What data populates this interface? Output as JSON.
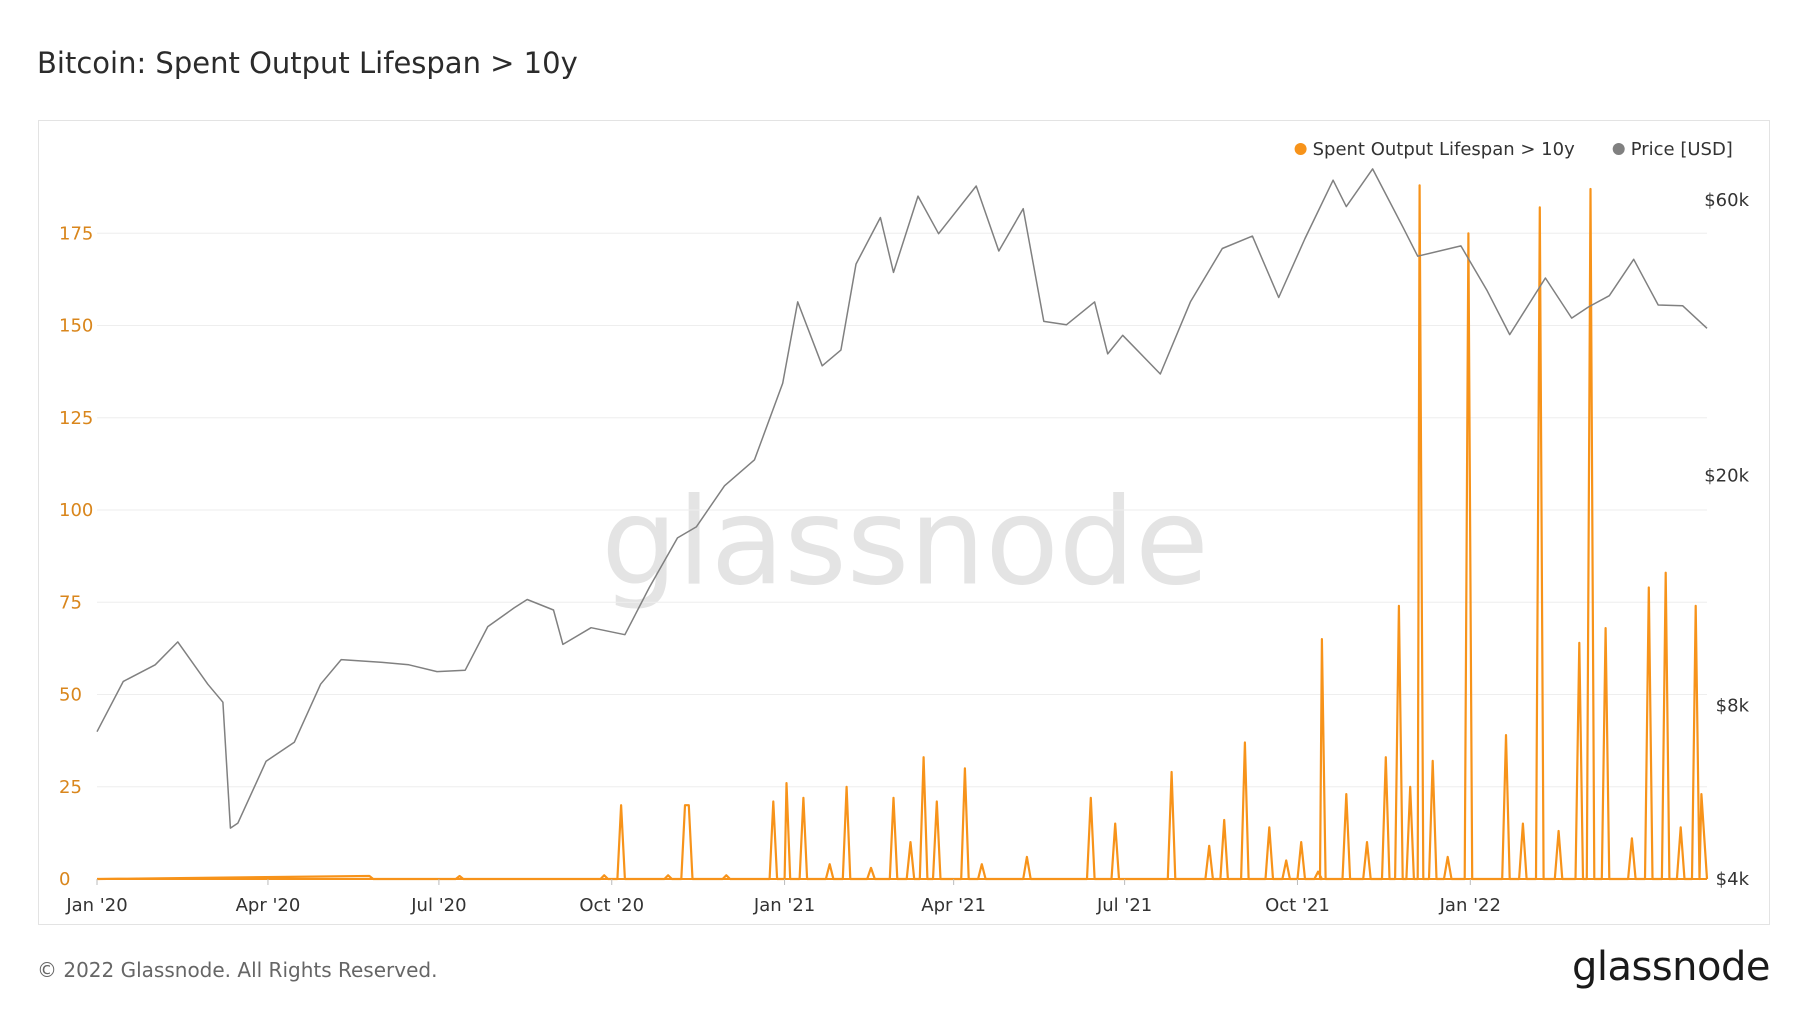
{
  "title": "Bitcoin: Spent Output Lifespan > 10y",
  "footer": {
    "copyright": "© 2022 Glassnode. All Rights Reserved.",
    "logo": "glassnode"
  },
  "watermark": "glassnode",
  "colors": {
    "spent": "#f7931a",
    "price": "#808080",
    "grid": "#eeeeee",
    "left_axis": "#d9861c"
  },
  "chart_data": {
    "type": "line",
    "title": "Bitcoin: Spent Output Lifespan > 10y",
    "xlabel": "",
    "ylabel": "",
    "x_range": [
      "2020-01-01",
      "2022-05-07"
    ],
    "x_ticks": [
      {
        "date": "2020-01-01",
        "label": "Jan '20"
      },
      {
        "date": "2020-04-01",
        "label": "Apr '20"
      },
      {
        "date": "2020-07-01",
        "label": "Jul '20"
      },
      {
        "date": "2020-10-01",
        "label": "Oct '20"
      },
      {
        "date": "2021-01-01",
        "label": "Jan '21"
      },
      {
        "date": "2021-04-01",
        "label": "Apr '21"
      },
      {
        "date": "2021-07-01",
        "label": "Jul '21"
      },
      {
        "date": "2021-10-01",
        "label": "Oct '21"
      },
      {
        "date": "2022-01-01",
        "label": "Jan '22"
      }
    ],
    "y_left": {
      "min": 0,
      "max": 200,
      "ticks": [
        0,
        25,
        50,
        75,
        100,
        125,
        150,
        175
      ],
      "labels": [
        "0",
        "25",
        "50",
        "75",
        "100",
        "125",
        "150",
        "175"
      ]
    },
    "y_right": {
      "scale": "log",
      "min": 4000,
      "max": 76000,
      "ticks": [
        4000,
        8000,
        20000,
        60000
      ],
      "labels": [
        "$4k",
        "$8k",
        "$20k",
        "$60k"
      ]
    },
    "legend_position": "top-right",
    "grid": true,
    "series": [
      {
        "name": "Spent Output Lifespan > 10y",
        "axis": "left",
        "style": "line",
        "points": [
          [
            "2020-01-01",
            0
          ],
          [
            "2020-05-25",
            0.8
          ],
          [
            "2020-05-27",
            0
          ],
          [
            "2020-07-10",
            0
          ],
          [
            "2020-07-12",
            0.8
          ],
          [
            "2020-07-14",
            0
          ],
          [
            "2020-09-25",
            0
          ],
          [
            "2020-09-27",
            1
          ],
          [
            "2020-09-29",
            0
          ],
          [
            "2020-10-04",
            0
          ],
          [
            "2020-10-06",
            20
          ],
          [
            "2020-10-08",
            0
          ],
          [
            "2020-10-29",
            0
          ],
          [
            "2020-10-31",
            1
          ],
          [
            "2020-11-02",
            0
          ],
          [
            "2020-11-07",
            0
          ],
          [
            "2020-11-09",
            20
          ],
          [
            "2020-11-11",
            20
          ],
          [
            "2020-11-13",
            0
          ],
          [
            "2020-11-29",
            0
          ],
          [
            "2020-12-01",
            1
          ],
          [
            "2020-12-03",
            0
          ],
          [
            "2020-12-24",
            0
          ],
          [
            "2020-12-26",
            21
          ],
          [
            "2020-12-28",
            0
          ],
          [
            "2021-01-01",
            0
          ],
          [
            "2021-01-02",
            26
          ],
          [
            "2021-01-04",
            0
          ],
          [
            "2021-01-09",
            0
          ],
          [
            "2021-01-11",
            22
          ],
          [
            "2021-01-13",
            0
          ],
          [
            "2021-01-23",
            0
          ],
          [
            "2021-01-25",
            4
          ],
          [
            "2021-01-27",
            0
          ],
          [
            "2021-02-01",
            0
          ],
          [
            "2021-02-03",
            25
          ],
          [
            "2021-02-05",
            0
          ],
          [
            "2021-02-14",
            0
          ],
          [
            "2021-02-16",
            3
          ],
          [
            "2021-02-18",
            0
          ],
          [
            "2021-02-26",
            0
          ],
          [
            "2021-02-28",
            22
          ],
          [
            "2021-03-02",
            0
          ],
          [
            "2021-03-07",
            0
          ],
          [
            "2021-03-09",
            10
          ],
          [
            "2021-03-11",
            0
          ],
          [
            "2021-03-14",
            0
          ],
          [
            "2021-03-16",
            33
          ],
          [
            "2021-03-18",
            0
          ],
          [
            "2021-03-21",
            0
          ],
          [
            "2021-03-23",
            21
          ],
          [
            "2021-03-25",
            0
          ],
          [
            "2021-04-05",
            0
          ],
          [
            "2021-04-07",
            30
          ],
          [
            "2021-04-09",
            0
          ],
          [
            "2021-04-14",
            0
          ],
          [
            "2021-04-16",
            4
          ],
          [
            "2021-04-18",
            0
          ],
          [
            "2021-05-08",
            0
          ],
          [
            "2021-05-10",
            6
          ],
          [
            "2021-05-12",
            0
          ],
          [
            "2021-06-11",
            0
          ],
          [
            "2021-06-13",
            22
          ],
          [
            "2021-06-15",
            0
          ],
          [
            "2021-06-24",
            0
          ],
          [
            "2021-06-26",
            15
          ],
          [
            "2021-06-28",
            0
          ],
          [
            "2021-07-24",
            0
          ],
          [
            "2021-07-26",
            29
          ],
          [
            "2021-07-28",
            0
          ],
          [
            "2021-08-13",
            0
          ],
          [
            "2021-08-15",
            9
          ],
          [
            "2021-08-17",
            0
          ],
          [
            "2021-08-21",
            0
          ],
          [
            "2021-08-23",
            16
          ],
          [
            "2021-08-25",
            0
          ],
          [
            "2021-09-01",
            0
          ],
          [
            "2021-09-03",
            37
          ],
          [
            "2021-09-05",
            0
          ],
          [
            "2021-09-14",
            0
          ],
          [
            "2021-09-16",
            14
          ],
          [
            "2021-09-18",
            0
          ],
          [
            "2021-09-23",
            0
          ],
          [
            "2021-09-25",
            5
          ],
          [
            "2021-09-27",
            0
          ],
          [
            "2021-10-01",
            0
          ],
          [
            "2021-10-03",
            10
          ],
          [
            "2021-10-05",
            0
          ],
          [
            "2021-10-10",
            0
          ],
          [
            "2021-10-12",
            2
          ],
          [
            "2021-10-14",
            0
          ],
          [
            "2021-10-13",
            0
          ],
          [
            "2021-10-14",
            65
          ],
          [
            "2021-10-16",
            0
          ],
          [
            "2021-10-25",
            0
          ],
          [
            "2021-10-27",
            23
          ],
          [
            "2021-10-29",
            0
          ],
          [
            "2021-11-05",
            0
          ],
          [
            "2021-11-07",
            10
          ],
          [
            "2021-11-09",
            0
          ],
          [
            "2021-11-15",
            0
          ],
          [
            "2021-11-17",
            33
          ],
          [
            "2021-11-19",
            0
          ],
          [
            "2021-11-22",
            0
          ],
          [
            "2021-11-24",
            74
          ],
          [
            "2021-11-26",
            0
          ],
          [
            "2021-11-28",
            0
          ],
          [
            "2021-11-30",
            25
          ],
          [
            "2021-12-02",
            0
          ],
          [
            "2021-12-04",
            0
          ],
          [
            "2021-12-05",
            188
          ],
          [
            "2021-12-07",
            0
          ],
          [
            "2021-12-10",
            0
          ],
          [
            "2021-12-12",
            32
          ],
          [
            "2021-12-14",
            0
          ],
          [
            "2021-12-18",
            0
          ],
          [
            "2021-12-20",
            6
          ],
          [
            "2021-12-22",
            0
          ],
          [
            "2021-12-29",
            0
          ],
          [
            "2021-12-31",
            175
          ],
          [
            "2022-01-02",
            0
          ],
          [
            "2022-01-18",
            0
          ],
          [
            "2022-01-20",
            39
          ],
          [
            "2022-01-22",
            0
          ],
          [
            "2022-01-27",
            0
          ],
          [
            "2022-01-29",
            15
          ],
          [
            "2022-01-31",
            0
          ],
          [
            "2022-02-05",
            0
          ],
          [
            "2022-02-07",
            182
          ],
          [
            "2022-02-09",
            0
          ],
          [
            "2022-02-15",
            0
          ],
          [
            "2022-02-17",
            13
          ],
          [
            "2022-02-19",
            0
          ],
          [
            "2022-02-26",
            0
          ],
          [
            "2022-02-28",
            64
          ],
          [
            "2022-03-02",
            0
          ],
          [
            "2022-03-04",
            0
          ],
          [
            "2022-03-06",
            187
          ],
          [
            "2022-03-08",
            0
          ],
          [
            "2022-03-12",
            0
          ],
          [
            "2022-03-14",
            68
          ],
          [
            "2022-03-16",
            0
          ],
          [
            "2022-03-26",
            0
          ],
          [
            "2022-03-28",
            11
          ],
          [
            "2022-03-30",
            0
          ],
          [
            "2022-04-04",
            0
          ],
          [
            "2022-04-06",
            79
          ],
          [
            "2022-04-08",
            0
          ],
          [
            "2022-04-13",
            0
          ],
          [
            "2022-04-15",
            83
          ],
          [
            "2022-04-17",
            0
          ],
          [
            "2022-04-21",
            0
          ],
          [
            "2022-04-23",
            14
          ],
          [
            "2022-04-25",
            0
          ],
          [
            "2022-04-29",
            0
          ],
          [
            "2022-05-01",
            74
          ],
          [
            "2022-05-03",
            0
          ],
          [
            "2022-05-04",
            23
          ],
          [
            "2022-05-07",
            0
          ]
        ]
      },
      {
        "name": "Price [USD]",
        "axis": "right",
        "style": "line",
        "points": [
          [
            "2020-01-01",
            7200
          ],
          [
            "2020-01-15",
            8800
          ],
          [
            "2020-02-01",
            9400
          ],
          [
            "2020-02-13",
            10300
          ],
          [
            "2020-02-29",
            8700
          ],
          [
            "2020-03-08",
            8100
          ],
          [
            "2020-03-12",
            4900
          ],
          [
            "2020-03-16",
            5000
          ],
          [
            "2020-03-31",
            6400
          ],
          [
            "2020-04-15",
            6900
          ],
          [
            "2020-04-29",
            8700
          ],
          [
            "2020-05-10",
            9600
          ],
          [
            "2020-05-31",
            9500
          ],
          [
            "2020-06-15",
            9400
          ],
          [
            "2020-06-30",
            9150
          ],
          [
            "2020-07-15",
            9200
          ],
          [
            "2020-07-27",
            10950
          ],
          [
            "2020-08-10",
            11800
          ],
          [
            "2020-08-17",
            12200
          ],
          [
            "2020-08-31",
            11700
          ],
          [
            "2020-09-05",
            10200
          ],
          [
            "2020-09-20",
            10900
          ],
          [
            "2020-10-08",
            10600
          ],
          [
            "2020-10-21",
            12800
          ],
          [
            "2020-11-05",
            15600
          ],
          [
            "2020-11-15",
            16300
          ],
          [
            "2020-11-30",
            19200
          ],
          [
            "2020-12-16",
            21300
          ],
          [
            "2020-12-31",
            28900
          ],
          [
            "2021-01-08",
            40000
          ],
          [
            "2021-01-21",
            31000
          ],
          [
            "2021-01-31",
            33000
          ],
          [
            "2021-02-08",
            46500
          ],
          [
            "2021-02-21",
            56000
          ],
          [
            "2021-02-28",
            45000
          ],
          [
            "2021-03-13",
            61000
          ],
          [
            "2021-03-24",
            52500
          ],
          [
            "2021-04-13",
            63500
          ],
          [
            "2021-04-25",
            49000
          ],
          [
            "2021-05-08",
            58000
          ],
          [
            "2021-05-19",
            37000
          ],
          [
            "2021-05-31",
            36500
          ],
          [
            "2021-06-15",
            40000
          ],
          [
            "2021-06-22",
            32500
          ],
          [
            "2021-06-30",
            35000
          ],
          [
            "2021-07-20",
            30000
          ],
          [
            "2021-08-05",
            40000
          ],
          [
            "2021-08-22",
            49500
          ],
          [
            "2021-09-07",
            52000
          ],
          [
            "2021-09-21",
            40700
          ],
          [
            "2021-10-05",
            51500
          ],
          [
            "2021-10-20",
            65000
          ],
          [
            "2021-10-27",
            58500
          ],
          [
            "2021-11-10",
            68000
          ],
          [
            "2021-11-26",
            54000
          ],
          [
            "2021-12-04",
            48000
          ],
          [
            "2021-12-27",
            50000
          ],
          [
            "2022-01-10",
            41800
          ],
          [
            "2022-01-22",
            35100
          ],
          [
            "2022-02-10",
            44000
          ],
          [
            "2022-02-24",
            37500
          ],
          [
            "2022-03-05",
            39200
          ],
          [
            "2022-03-16",
            41000
          ],
          [
            "2022-03-29",
            47400
          ],
          [
            "2022-04-11",
            39500
          ],
          [
            "2022-04-24",
            39400
          ],
          [
            "2022-05-07",
            36000
          ]
        ]
      }
    ]
  },
  "legend": [
    {
      "label": "Spent Output Lifespan > 10y",
      "color": "#f7931a"
    },
    {
      "label": "Price [USD]",
      "color": "#808080"
    }
  ]
}
